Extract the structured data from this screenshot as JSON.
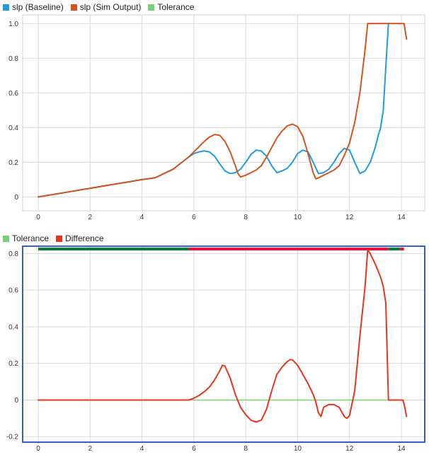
{
  "chart_data": [
    {
      "type": "line",
      "xlim": [
        -0.6,
        14.9
      ],
      "ylim": [
        -0.08,
        1.05
      ],
      "xticks": [
        0,
        2,
        4,
        6,
        8,
        10,
        12,
        14
      ],
      "yticks": [
        0,
        0.2,
        0.4,
        0.6,
        0.8,
        1.0
      ],
      "ytick_labels": [
        "0",
        "0.2",
        "0.4",
        "0.6",
        "0.8",
        "1.0"
      ],
      "grid": true,
      "legend_position": "top-left",
      "legend": [
        {
          "name": "slp (Baseline)",
          "color": "#1f9bde"
        },
        {
          "name": "slp (Sim Output)",
          "color": "#d4541c"
        },
        {
          "name": "Tolerance",
          "color": "#77d177"
        }
      ],
      "series": [
        {
          "name": "slp (Baseline)",
          "color": "#1f9bde",
          "x": [
            0,
            1,
            2,
            3,
            4,
            4.5,
            5.2,
            5.8,
            6,
            6.2,
            6.4,
            6.6,
            6.8,
            7,
            7.2,
            7.4,
            7.6,
            7.8,
            8,
            8.2,
            8.4,
            8.6,
            8.8,
            9,
            9.2,
            9.4,
            9.6,
            9.8,
            10,
            10.2,
            10.4,
            10.6,
            10.8,
            11,
            11.2,
            11.4,
            11.6,
            11.8,
            12,
            12.2,
            12.4,
            12.6,
            12.8,
            13,
            13.1,
            13.2,
            13.3,
            13.4,
            13.5
          ],
          "y": [
            0,
            0.025,
            0.05,
            0.075,
            0.1,
            0.11,
            0.16,
            0.23,
            0.25,
            0.26,
            0.265,
            0.26,
            0.235,
            0.19,
            0.15,
            0.135,
            0.14,
            0.16,
            0.2,
            0.245,
            0.27,
            0.265,
            0.235,
            0.18,
            0.14,
            0.15,
            0.165,
            0.2,
            0.25,
            0.27,
            0.26,
            0.2,
            0.135,
            0.14,
            0.16,
            0.2,
            0.25,
            0.28,
            0.27,
            0.2,
            0.135,
            0.15,
            0.2,
            0.29,
            0.35,
            0.4,
            0.5,
            0.75,
            1.0
          ]
        },
        {
          "name": "slp (Sim Output)",
          "color": "#d4541c",
          "x": [
            0,
            1,
            2,
            3,
            4,
            4.5,
            5.2,
            5.8,
            6,
            6.2,
            6.4,
            6.6,
            6.8,
            7,
            7.2,
            7.4,
            7.6,
            7.7,
            7.8,
            8,
            8.2,
            8.4,
            8.6,
            8.8,
            9,
            9.2,
            9.4,
            9.6,
            9.8,
            10,
            10.2,
            10.4,
            10.6,
            10.7,
            10.8,
            11,
            11.2,
            11.4,
            11.6,
            11.8,
            12,
            12.2,
            12.4,
            12.6,
            12.7,
            14.1,
            14.2
          ],
          "y": [
            0,
            0.025,
            0.05,
            0.075,
            0.1,
            0.11,
            0.16,
            0.23,
            0.26,
            0.29,
            0.32,
            0.345,
            0.36,
            0.355,
            0.32,
            0.26,
            0.18,
            0.135,
            0.115,
            0.125,
            0.14,
            0.155,
            0.18,
            0.23,
            0.285,
            0.34,
            0.38,
            0.41,
            0.42,
            0.405,
            0.35,
            0.25,
            0.14,
            0.105,
            0.11,
            0.125,
            0.14,
            0.155,
            0.18,
            0.24,
            0.31,
            0.43,
            0.6,
            0.85,
            1.0,
            1.0,
            0.91
          ]
        }
      ]
    },
    {
      "type": "line",
      "xlim": [
        -0.6,
        14.9
      ],
      "ylim": [
        -0.23,
        0.84
      ],
      "xticks": [
        0,
        2,
        4,
        6,
        8,
        10,
        12,
        14
      ],
      "yticks": [
        -0.2,
        0,
        0.2,
        0.4,
        0.6,
        0.8
      ],
      "ytick_labels": [
        "-0.2",
        "0",
        "0.2",
        "0.4",
        "0.6",
        "0.8"
      ],
      "grid": true,
      "legend_position": "top-left",
      "legend": [
        {
          "name": "Tolerance",
          "color": "#77d177"
        },
        {
          "name": "Difference",
          "color": "#e8341c"
        }
      ],
      "status_bar": [
        {
          "from": 0,
          "to": 5.8,
          "color": "#0c7a3a"
        },
        {
          "from": 5.8,
          "to": 13.5,
          "color": "#e8103c"
        },
        {
          "from": 13.5,
          "to": 13.95,
          "color": "#0c7a3a"
        },
        {
          "from": 13.95,
          "to": 14.1,
          "color": "#e8103c"
        }
      ],
      "series": [
        {
          "name": "Tolerance",
          "color": "#77d177",
          "x": [
            0,
            14.1
          ],
          "y": [
            0,
            0
          ]
        },
        {
          "name": "Difference",
          "color": "#e8341c",
          "x": [
            0,
            5.8,
            6,
            6.2,
            6.4,
            6.6,
            6.8,
            7,
            7.1,
            7.2,
            7.4,
            7.6,
            7.8,
            8,
            8.2,
            8.4,
            8.6,
            8.8,
            9,
            9.2,
            9.4,
            9.6,
            9.7,
            9.8,
            10,
            10.2,
            10.4,
            10.6,
            10.7,
            10.8,
            10.9,
            11,
            11.2,
            11.4,
            11.6,
            11.8,
            11.9,
            12,
            12.2,
            12.4,
            12.6,
            12.7,
            12.8,
            13,
            13.2,
            13.3,
            13.4,
            13.5,
            14.05,
            14.1,
            14.2
          ],
          "y": [
            0,
            0,
            0.01,
            0.025,
            0.045,
            0.07,
            0.11,
            0.16,
            0.19,
            0.185,
            0.12,
            0.03,
            -0.04,
            -0.08,
            -0.11,
            -0.12,
            -0.11,
            -0.05,
            0.05,
            0.14,
            0.18,
            0.21,
            0.22,
            0.22,
            0.19,
            0.14,
            0.09,
            0.03,
            -0.01,
            -0.07,
            -0.09,
            -0.04,
            -0.025,
            -0.025,
            -0.04,
            -0.09,
            -0.1,
            -0.085,
            0.05,
            0.35,
            0.62,
            0.82,
            0.8,
            0.74,
            0.67,
            0.62,
            0.53,
            0.0,
            0.0,
            -0.02,
            -0.09
          ]
        }
      ]
    }
  ]
}
